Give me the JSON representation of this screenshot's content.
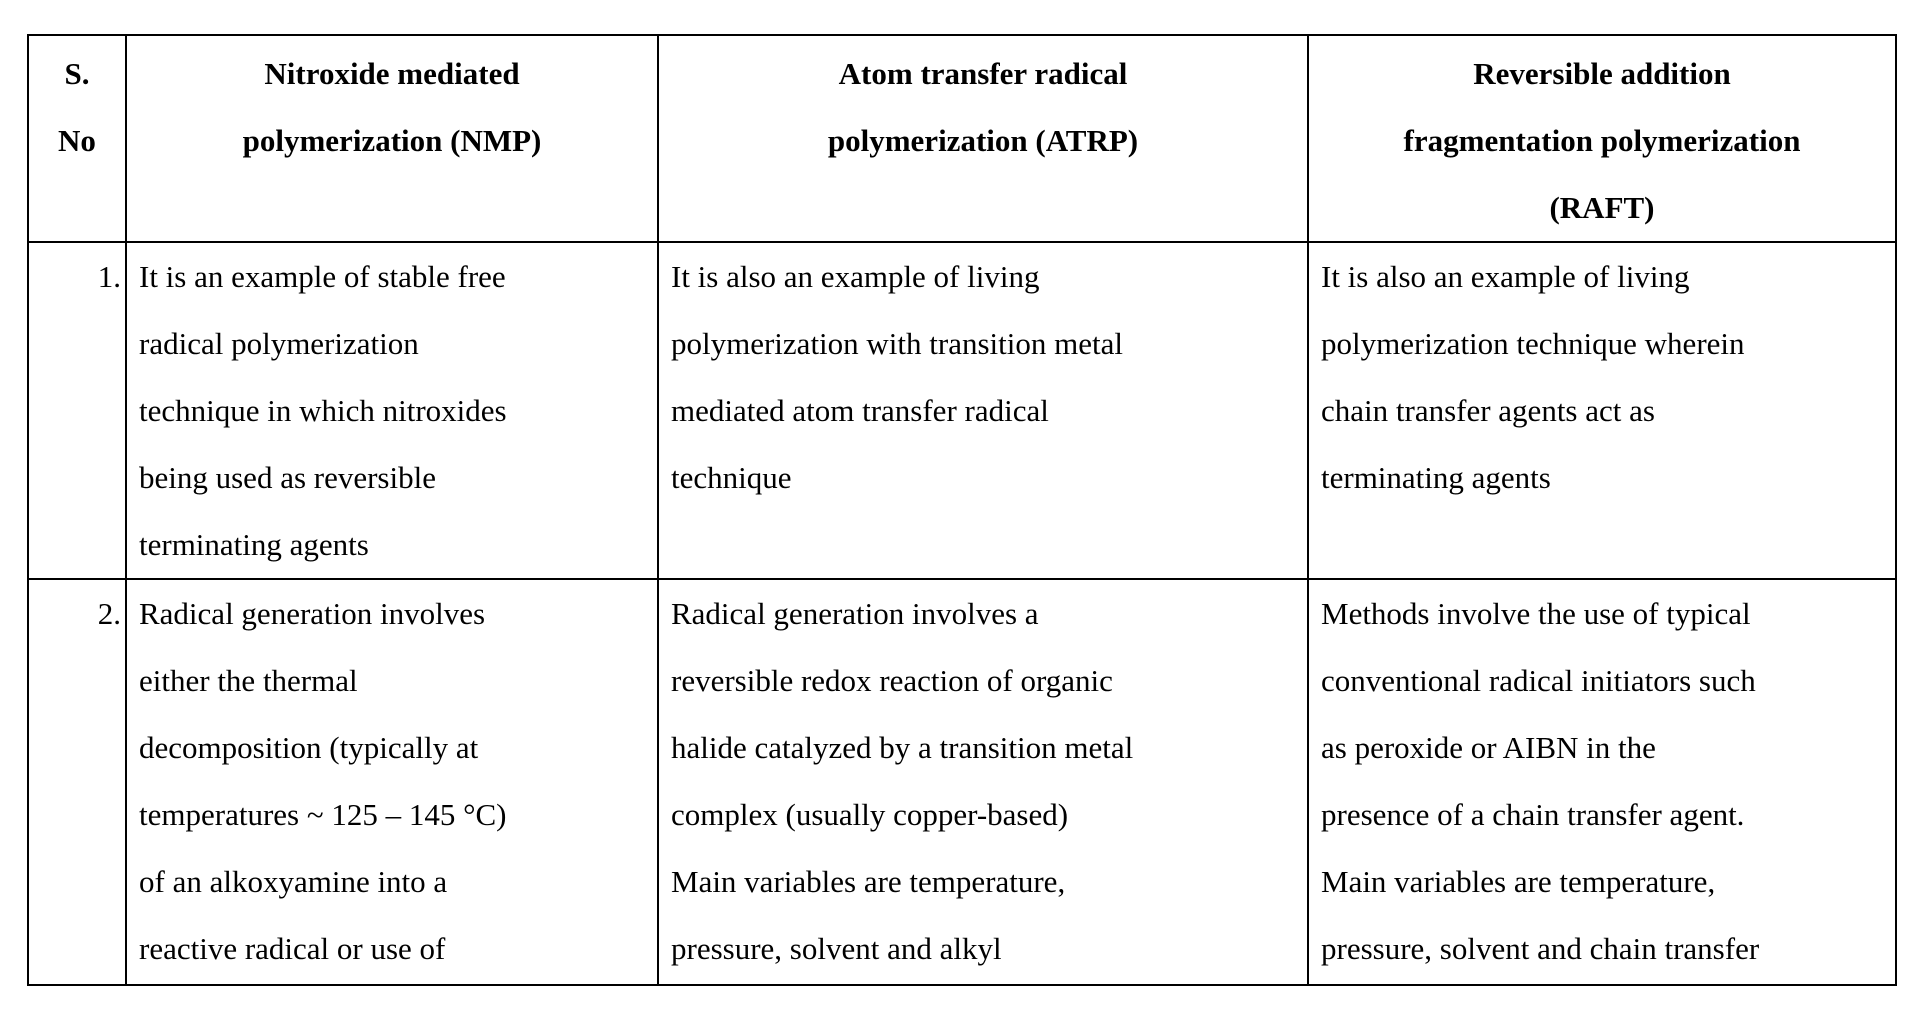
{
  "table": {
    "headers": [
      "S.\nNo",
      "Nitroxide mediated\npolymerization (NMP)",
      "Atom transfer radical\npolymerization (ATRP)",
      "Reversible addition\nfragmentation polymerization\n(RAFT)"
    ],
    "rows": [
      {
        "sno": "1.",
        "nmp": "It is an example of stable free\nradical polymerization\ntechnique in which nitroxides\nbeing used as  reversible\nterminating agents",
        "atrp": "It is also an example of living\npolymerization with transition metal\nmediated atom transfer radical\ntechnique",
        "raft": "It is also an example of living\npolymerization technique wherein\nchain transfer agents act as\nterminating agents"
      },
      {
        "sno": "2.",
        "nmp": "Radical generation involves\neither the thermal\ndecomposition (typically at\ntemperatures ~ 125 – 145 °C)\nof an alkoxyamine into a\nreactive radical or use of",
        "atrp": "Radical generation involves a\nreversible redox reaction of organic\nhalide catalyzed by a transition metal\ncomplex (usually copper-based)\nMain variables are temperature,\npressure, solvent and alkyl",
        "raft": "Methods involve the use of typical\nconventional radical initiators such\nas peroxide or AIBN in the\npresence of a chain transfer agent.\nMain variables are temperature,\npressure, solvent and chain transfer"
      }
    ]
  }
}
